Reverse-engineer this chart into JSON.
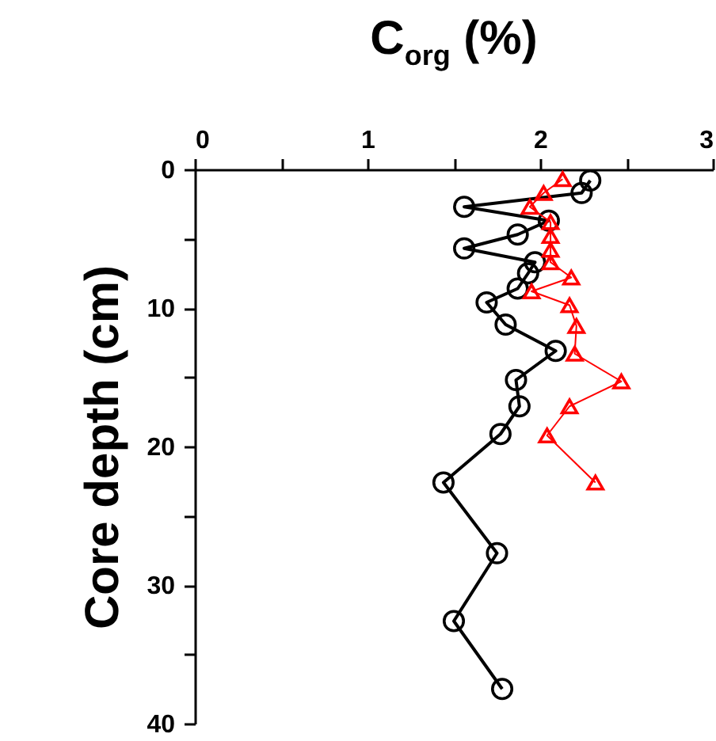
{
  "chart_data": {
    "type": "line",
    "xlabel": "C$_{org}$ (%)",
    "ylabel": "Core depth (cm)",
    "xlim": [
      0,
      3
    ],
    "xticks": [
      0,
      {
        "value": 0.5,
        "label": null
      },
      1,
      {
        "value": 1.5,
        "label": null
      },
      2,
      {
        "value": 2.5,
        "label": null
      },
      3
    ],
    "ylim": [
      40,
      0
    ],
    "yticks": [
      0,
      {
        "value": 5,
        "label": null
      },
      10,
      {
        "value": 15,
        "label": null
      },
      20,
      {
        "value": 25,
        "label": null
      },
      30,
      {
        "value": 35,
        "label": null
      },
      40
    ],
    "grid": false,
    "line_style": "solid",
    "series": [
      {
        "color": "#000000",
        "marker": "circle",
        "x": [
          2.29,
          2.24,
          1.56,
          2.05,
          1.87,
          1.56,
          1.97,
          1.93,
          1.87,
          1.69,
          1.8,
          2.09,
          1.86,
          1.88,
          1.77,
          1.44,
          1.75,
          1.5,
          1.78
        ],
        "values": [
          0.8,
          1.7,
          2.7,
          3.7,
          4.7,
          5.7,
          6.7,
          7.5,
          8.6,
          9.6,
          11.2,
          13.1,
          15.2,
          17.1,
          19.1,
          22.6,
          27.7,
          32.6,
          37.5
        ]
      },
      {
        "color": "#ff0000",
        "marker": "triangle",
        "x": [
          2.13,
          2.02,
          1.94,
          2.06,
          2.06,
          2.06,
          2.06,
          2.18,
          1.95,
          2.17,
          2.21,
          2.2,
          2.47,
          2.17,
          2.04,
          2.32
        ],
        "values": [
          0.7,
          1.7,
          2.7,
          3.8,
          4.8,
          5.8,
          6.7,
          7.8,
          8.8,
          9.8,
          11.3,
          13.3,
          15.3,
          17.1,
          19.2,
          22.6
        ]
      }
    ]
  }
}
